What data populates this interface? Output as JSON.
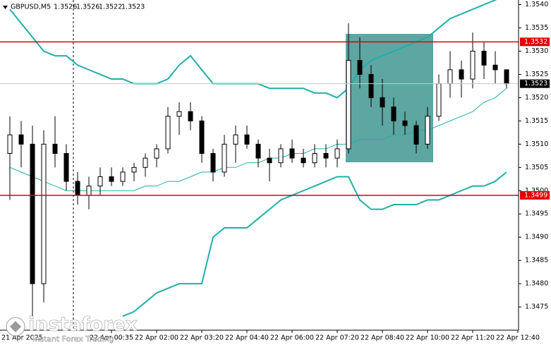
{
  "chart_data": {
    "type": "candlestick",
    "title": "GBPUSD,M5",
    "ohlc_header": [
      1.3526,
      1.3526,
      1.3522,
      1.3523
    ],
    "watermark": "instaforex",
    "watermark_tagline": "Instant Forex Trading",
    "categories": [
      "21 Apr 2025",
      null,
      null,
      null,
      null,
      null,
      null,
      null,
      null,
      "22 Apr 00:35",
      null,
      null,
      null,
      "22 Apr 02:00",
      null,
      null,
      null,
      "22 Apr 03:20",
      null,
      null,
      null,
      "22 Apr 04:40",
      null,
      null,
      null,
      "22 Apr 06:00",
      null,
      null,
      null,
      "22 Apr 07:20",
      null,
      null,
      null,
      "22 Apr 08:40",
      null,
      null,
      null,
      "22 Apr 10:00",
      null,
      null,
      null,
      "22 Apr 11:20",
      null,
      null,
      null,
      "22 Apr 12:40"
    ],
    "open": [
      1.3508,
      1.3512,
      1.351,
      1.348,
      1.351,
      1.3508,
      1.3502,
      1.3499,
      1.3501,
      1.3503,
      1.3502,
      1.3504,
      1.3505,
      1.3507,
      1.3509,
      1.3516,
      1.3517,
      1.3515,
      1.3508,
      1.3504,
      1.351,
      1.3512,
      1.351,
      1.3507,
      1.3506,
      1.3509,
      1.3507,
      1.3506,
      1.3508,
      1.3507,
      1.3509,
      1.3528,
      1.3525,
      1.352,
      1.3518,
      1.3515,
      1.3514,
      1.351,
      1.3516,
      1.3523,
      1.3526,
      1.3524,
      1.353,
      1.3527,
      1.3526,
      null
    ],
    "high": [
      1.3516,
      1.3515,
      1.3514,
      1.3513,
      1.3516,
      1.351,
      1.3504,
      1.3503,
      1.3505,
      1.3505,
      1.3505,
      1.3506,
      1.3508,
      1.351,
      1.3518,
      1.3519,
      1.3519,
      1.3516,
      1.3509,
      1.3512,
      1.3514,
      1.3514,
      1.3511,
      1.3509,
      1.351,
      1.3511,
      1.3509,
      1.351,
      1.351,
      1.3511,
      1.3536,
      1.3533,
      1.3527,
      1.3524,
      1.352,
      1.3517,
      1.3515,
      1.3518,
      1.3525,
      1.353,
      1.3528,
      1.3534,
      1.3532,
      1.353,
      1.3526,
      null
    ],
    "low": [
      1.3498,
      1.3505,
      1.3473,
      1.3476,
      1.3505,
      1.35,
      1.3497,
      1.3496,
      1.3499,
      1.3501,
      1.3501,
      1.3502,
      1.3503,
      1.3505,
      1.3508,
      1.3512,
      1.3513,
      1.3506,
      1.3502,
      1.3503,
      1.3506,
      1.3509,
      1.3505,
      1.3502,
      1.3505,
      1.3506,
      1.3505,
      1.3505,
      1.3505,
      1.3505,
      1.3508,
      1.3522,
      1.3518,
      1.3514,
      1.3512,
      1.3512,
      1.3508,
      1.3509,
      1.3515,
      1.352,
      1.352,
      1.3522,
      1.3524,
      1.3523,
      1.3522,
      null
    ],
    "close": [
      1.3512,
      1.351,
      1.348,
      1.351,
      1.3508,
      1.3502,
      1.3499,
      1.3501,
      1.3503,
      1.3502,
      1.3504,
      1.3505,
      1.3507,
      1.3509,
      1.3516,
      1.3517,
      1.3515,
      1.3508,
      1.3504,
      1.351,
      1.3512,
      1.351,
      1.3507,
      1.3506,
      1.3509,
      1.3507,
      1.3506,
      1.3508,
      1.3507,
      1.3509,
      1.3528,
      1.3525,
      1.352,
      1.3518,
      1.3515,
      1.3514,
      1.351,
      1.3516,
      1.3523,
      1.3526,
      1.3524,
      1.353,
      1.3527,
      1.3526,
      1.3523,
      null
    ],
    "up_color": "#ffffff",
    "down_color": "#000000",
    "bollinger": {
      "color": "#1fb0a8",
      "upper": [
        1.3539,
        1.3536,
        1.3533,
        1.353,
        1.3529,
        1.3529,
        1.3527,
        1.3526,
        1.3525,
        1.3524,
        1.3524,
        1.3523,
        1.3523,
        1.3523,
        1.3524,
        1.3527,
        1.3529,
        1.3526,
        1.3523,
        1.3523,
        1.3523,
        1.3523,
        1.3523,
        1.3522,
        1.3522,
        1.3522,
        1.3522,
        1.3521,
        1.3521,
        1.352,
        1.3522,
        1.3526,
        1.3528,
        1.3529,
        1.353,
        1.3531,
        1.3532,
        1.3533,
        1.3535,
        1.3537,
        1.3538,
        1.3539,
        1.354,
        1.3541,
        1.3542,
        null
      ],
      "middle": [
        1.3505,
        1.3504,
        1.3503,
        1.3502,
        1.3501,
        1.35,
        1.35,
        1.35,
        1.35,
        1.35,
        1.35,
        1.35,
        1.3501,
        1.3501,
        1.3502,
        1.3502,
        1.3503,
        1.3504,
        1.3504,
        1.3505,
        1.3505,
        1.3506,
        1.3506,
        1.3507,
        1.3507,
        1.3508,
        1.3508,
        1.3509,
        1.3509,
        1.351,
        1.351,
        1.3511,
        1.3511,
        1.3511,
        1.3512,
        1.3512,
        1.3513,
        1.3513,
        1.3514,
        1.3515,
        1.3516,
        1.3517,
        1.3519,
        1.352,
        1.3522,
        null
      ],
      "lower": [
        null,
        null,
        null,
        null,
        null,
        null,
        null,
        null,
        null,
        null,
        1.3473,
        1.3474,
        1.3476,
        1.3478,
        1.3479,
        1.348,
        1.348,
        1.348,
        1.349,
        1.3492,
        1.3492,
        1.3492,
        1.3494,
        1.3496,
        1.3498,
        1.3499,
        1.35,
        1.3501,
        1.3502,
        1.3503,
        1.3503,
        1.3498,
        1.3496,
        1.3496,
        1.3497,
        1.3497,
        1.3497,
        1.3498,
        1.3498,
        1.3499,
        1.35,
        1.3501,
        1.3501,
        1.3502,
        1.3504,
        null
      ]
    },
    "levels": [
      1.3532,
      1.3499
    ],
    "level_color": "#e00000",
    "last_price": 1.3523,
    "ylim": [
      1.347,
      1.3541
    ],
    "yticks": [
      1.3475,
      {
        "value": 1.348,
        "label": "1.3480"
      },
      1.3485,
      {
        "value": 1.349,
        "label": "1.3490"
      },
      1.3495,
      {
        "value": 1.35,
        "label": "1.3500"
      },
      1.3505,
      {
        "value": 1.351,
        "label": "1.3510"
      },
      1.3515,
      {
        "value": 1.352,
        "label": "1.3520"
      },
      1.3525,
      {
        "value": 1.353,
        "label": "1.3530"
      },
      1.3535,
      {
        "value": 1.354,
        "label": "1.3540"
      }
    ]
  }
}
